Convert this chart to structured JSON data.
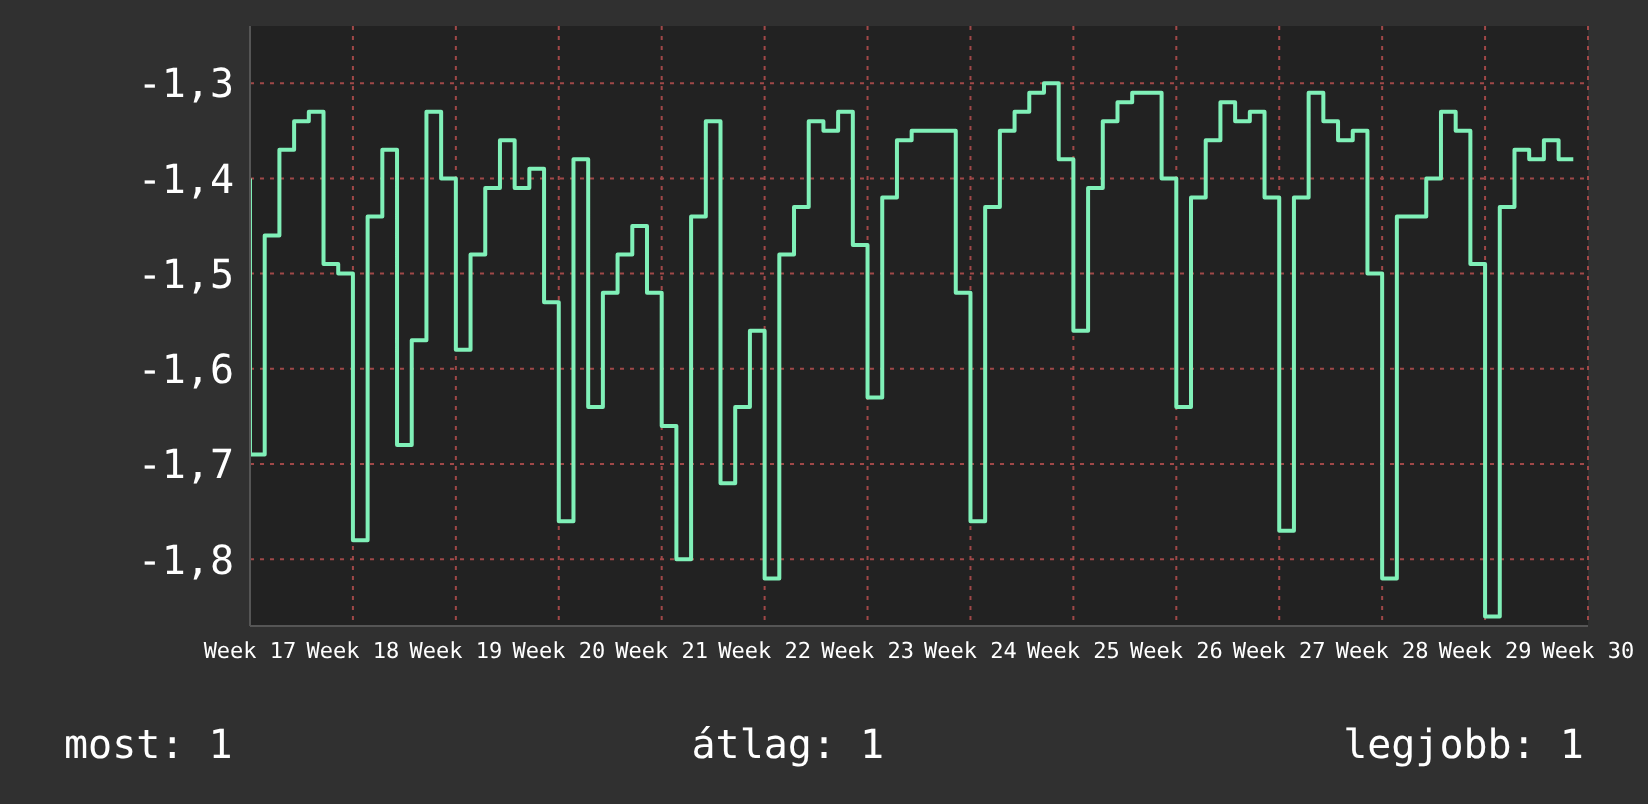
{
  "chart_data": {
    "type": "step",
    "categories": [
      "Week 17",
      null,
      null,
      null,
      null,
      null,
      null,
      "Week 18",
      null,
      null,
      null,
      null,
      null,
      null,
      "Week 19",
      null,
      null,
      null,
      null,
      null,
      null,
      "Week 20",
      null,
      null,
      null,
      null,
      null,
      null,
      "Week 21",
      null,
      null,
      null,
      null,
      null,
      null,
      "Week 22",
      null,
      null,
      null,
      null,
      null,
      null,
      "Week 23",
      null,
      null,
      null,
      null,
      null,
      null,
      "Week 24",
      null,
      null,
      null,
      null,
      null,
      null,
      "Week 25",
      null,
      null,
      null,
      null,
      null,
      null,
      "Week 26",
      null,
      null,
      null,
      null,
      null,
      null,
      "Week 27",
      null,
      null,
      null,
      null,
      null,
      null,
      "Week 28",
      null,
      null,
      null,
      null,
      null,
      null,
      "Week 29",
      null,
      null,
      null,
      null,
      null,
      null,
      "Week 30"
    ],
    "series": [
      {
        "color": "#80f0b8",
        "values": [
          -1.4,
          -1.69,
          -1.46,
          -1.37,
          -1.34,
          -1.33,
          -1.49,
          -1.5,
          -1.78,
          -1.44,
          -1.37,
          -1.68,
          -1.57,
          -1.33,
          -1.4,
          -1.58,
          -1.48,
          -1.41,
          -1.36,
          -1.41,
          -1.39,
          -1.53,
          -1.76,
          -1.38,
          -1.64,
          -1.52,
          -1.48,
          -1.45,
          -1.52,
          -1.66,
          -1.8,
          -1.44,
          -1.34,
          -1.72,
          -1.64,
          -1.56,
          -1.82,
          -1.48,
          -1.43,
          -1.34,
          -1.35,
          -1.33,
          -1.47,
          -1.63,
          -1.42,
          -1.36,
          -1.35,
          -1.35,
          -1.35,
          -1.52,
          -1.76,
          -1.43,
          -1.35,
          -1.33,
          -1.31,
          -1.3,
          -1.38,
          -1.56,
          -1.41,
          -1.34,
          -1.32,
          -1.31,
          -1.31,
          -1.4,
          -1.64,
          -1.42,
          -1.36,
          -1.32,
          -1.34,
          -1.33,
          -1.42,
          -1.77,
          -1.42,
          -1.31,
          -1.34,
          -1.36,
          -1.35,
          -1.5,
          -1.82,
          -1.44,
          -1.44,
          -1.4,
          -1.33,
          -1.35,
          -1.49,
          -1.86,
          -1.43,
          -1.37,
          -1.38,
          -1.36,
          -1.38,
          null
        ]
      }
    ],
    "ylim": [
      -1.87,
      -1.24
    ],
    "yticks": [
      {
        "value": -1.3,
        "label": "-1,3"
      },
      {
        "value": -1.4,
        "label": "-1,4"
      },
      {
        "value": -1.5,
        "label": "-1,5"
      },
      {
        "value": -1.6,
        "label": "-1,6"
      },
      {
        "value": -1.7,
        "label": "-1,7"
      },
      {
        "value": -1.8,
        "label": "-1,8"
      }
    ],
    "grid": true,
    "marker": "none",
    "legend": false,
    "annotations": [
      "most: 1",
      "átlag: 1",
      "legjobb: 1"
    ]
  }
}
